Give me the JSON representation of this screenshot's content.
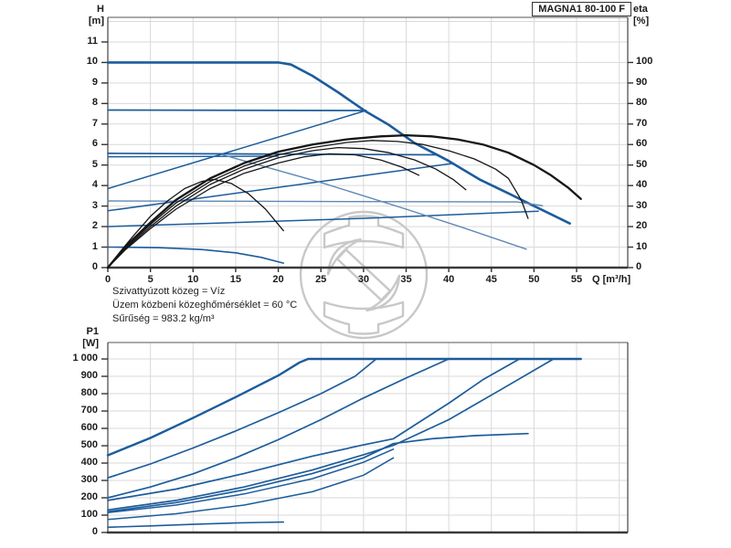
{
  "header": {
    "model_label": "MAGNA1 80-100 F"
  },
  "notes": [
    "Szivattyúzott közeg = Víz",
    "Üzem közbeni közeghőmérséklet = 60 °C",
    "Sűrűség = 983.2 kg/m³"
  ],
  "colors": {
    "curve_blue": "#1c5c9c",
    "curve_blue_light": "#5e88b4",
    "curve_black": "#161616",
    "grid": "#d9d9d9",
    "axis": "#3a3a3a",
    "border": "#555555",
    "watermark": "#c8c8c8",
    "text": "#1a1a1a"
  },
  "chart_data": [
    {
      "id": "head-efficiency-chart",
      "type": "line",
      "title": "MAGNA1 80-100 F",
      "xlabel": "Q [m³/h]",
      "ylabel_left_lines": [
        "H",
        "[m]"
      ],
      "ylabel_right_lines": [
        "eta",
        "[%]"
      ],
      "xlim": [
        0,
        61
      ],
      "ylim": [
        0,
        12.2
      ],
      "y2lim": [
        0,
        122
      ],
      "grid": true,
      "x_tick_values": [
        0,
        5,
        10,
        15,
        20,
        25,
        30,
        35,
        40,
        45,
        50,
        55
      ],
      "x_grid_values": [
        0,
        5,
        10,
        15,
        20,
        25,
        30,
        35,
        40,
        45,
        50,
        55,
        60
      ],
      "y_tick_values": [
        0,
        1,
        2,
        3,
        4,
        5,
        6,
        7,
        8,
        9,
        10,
        11
      ],
      "y_grid_values": [
        1,
        2,
        3,
        4,
        5,
        6,
        7,
        8,
        9,
        10,
        11,
        12
      ],
      "y2_tick_values": [
        0,
        10,
        20,
        30,
        40,
        50,
        60,
        70,
        80,
        90,
        100
      ],
      "series": [
        {
          "name": "max-speed-head-curve",
          "axis": "left",
          "color": "blue",
          "width": 2.6,
          "points": [
            [
              0,
              10
            ],
            [
              20,
              10
            ],
            [
              21.5,
              9.9
            ],
            [
              24,
              9.35
            ],
            [
              27,
              8.55
            ],
            [
              30.2,
              7.63
            ],
            [
              33,
              6.95
            ],
            [
              36,
              6.07
            ],
            [
              40,
              5.2
            ],
            [
              43.6,
              4.3
            ],
            [
              47,
              3.62
            ],
            [
              50,
              3.0
            ],
            [
              52,
              2.6
            ],
            [
              54.2,
              2.15
            ]
          ]
        },
        {
          "name": "const-pressure-7.7",
          "axis": "left",
          "color": "blue",
          "width": 1.7,
          "points": [
            [
              0,
              7.68
            ],
            [
              30.3,
              7.66
            ]
          ]
        },
        {
          "name": "prop-pressure-7.7",
          "axis": "left",
          "color": "blue",
          "width": 1.5,
          "points": [
            [
              0,
              3.85
            ],
            [
              30.3,
              7.66
            ]
          ]
        },
        {
          "name": "const-pressure-5.55",
          "axis": "left",
          "color": "blue",
          "width": 1.7,
          "points": [
            [
              0,
              5.57
            ],
            [
              38.6,
              5.5
            ]
          ]
        },
        {
          "name": "const-pressure-5.4",
          "axis": "left",
          "color": "blue",
          "width": 1.4,
          "points": [
            [
              0,
              5.4
            ],
            [
              20,
              5.43
            ]
          ]
        },
        {
          "name": "prop-pressure-5.5",
          "axis": "left",
          "color": "blue",
          "width": 1.5,
          "points": [
            [
              0,
              2.77
            ],
            [
              40.3,
              5.07
            ]
          ]
        },
        {
          "name": "const-pressure-3.25",
          "axis": "left",
          "color": "light",
          "width": 1.4,
          "points": [
            [
              0,
              3.25
            ],
            [
              48,
              3.2
            ],
            [
              51,
              3.02
            ]
          ]
        },
        {
          "name": "prop-pressure-2.0",
          "axis": "left",
          "color": "blue",
          "width": 1.5,
          "points": [
            [
              0,
              2.0
            ],
            [
              30,
              2.4
            ],
            [
              50.5,
              2.75
            ]
          ]
        },
        {
          "name": "min-speed-head-curve",
          "axis": "left",
          "color": "blue",
          "width": 1.6,
          "points": [
            [
              0,
              1.0
            ],
            [
              6,
              0.97
            ],
            [
              11,
              0.88
            ],
            [
              15,
              0.72
            ],
            [
              18,
              0.5
            ],
            [
              20.6,
              0.22
            ]
          ]
        },
        {
          "name": "speed2-head-curve",
          "axis": "left",
          "color": "light",
          "width": 1.4,
          "points": [
            [
              13.5,
              5.5
            ],
            [
              25,
              4.15
            ],
            [
              35,
              2.85
            ],
            [
              42,
              1.9
            ],
            [
              49.1,
              0.9
            ]
          ]
        },
        {
          "name": "eta-max-speed",
          "axis": "right",
          "color": "black",
          "width": 2.3,
          "points": [
            [
              0,
              0
            ],
            [
              2,
              10
            ],
            [
              5,
              22
            ],
            [
              8,
              33
            ],
            [
              12,
              43.5
            ],
            [
              16,
              51
            ],
            [
              20,
              56.5
            ],
            [
              24,
              60
            ],
            [
              28,
              62.5
            ],
            [
              32,
              64
            ],
            [
              35,
              64.5
            ],
            [
              38,
              64
            ],
            [
              41,
              62.5
            ],
            [
              44,
              60
            ],
            [
              47,
              56
            ],
            [
              50,
              50
            ],
            [
              52,
              45
            ],
            [
              54,
              39
            ],
            [
              55.5,
              33.5
            ]
          ]
        },
        {
          "name": "eta-speed-2",
          "axis": "right",
          "color": "black",
          "width": 1.3,
          "points": [
            [
              0,
              0
            ],
            [
              2,
              9.5
            ],
            [
              5,
              21
            ],
            [
              8,
              31.5
            ],
            [
              12,
              42
            ],
            [
              16,
              49.5
            ],
            [
              20,
              55
            ],
            [
              24,
              58.5
            ],
            [
              28,
              61
            ],
            [
              31,
              62
            ],
            [
              34,
              61.5
            ],
            [
              37,
              60
            ],
            [
              40,
              57
            ],
            [
              43,
              53
            ],
            [
              45.5,
              48
            ],
            [
              47,
              43.5
            ],
            [
              48.5,
              33
            ],
            [
              49.3,
              24
            ]
          ]
        },
        {
          "name": "eta-speed-3",
          "axis": "right",
          "color": "black",
          "width": 1.3,
          "points": [
            [
              0,
              0
            ],
            [
              2,
              9
            ],
            [
              5,
              20
            ],
            [
              8,
              30
            ],
            [
              12,
              40.5
            ],
            [
              16,
              48
            ],
            [
              20,
              53.5
            ],
            [
              24,
              57
            ],
            [
              27,
              58.5
            ],
            [
              30,
              58
            ],
            [
              33,
              56
            ],
            [
              36,
              52.5
            ],
            [
              38.5,
              48
            ],
            [
              40.5,
              43
            ],
            [
              42,
              38
            ]
          ]
        },
        {
          "name": "eta-speed-4",
          "axis": "right",
          "color": "black",
          "width": 1.3,
          "points": [
            [
              0,
              0
            ],
            [
              2,
              8.5
            ],
            [
              5,
              19
            ],
            [
              8,
              28.5
            ],
            [
              12,
              38.5
            ],
            [
              16,
              46
            ],
            [
              20,
              51
            ],
            [
              23,
              54
            ],
            [
              26,
              55.5
            ],
            [
              29,
              55
            ],
            [
              32,
              52.5
            ],
            [
              34.5,
              49
            ],
            [
              36.5,
              45
            ]
          ]
        },
        {
          "name": "eta-min-speed",
          "axis": "right",
          "color": "black",
          "width": 1.3,
          "points": [
            [
              0,
              0
            ],
            [
              1.5,
              8
            ],
            [
              3,
              15.5
            ],
            [
              5,
              25
            ],
            [
              7,
              32.5
            ],
            [
              9,
              38.5
            ],
            [
              11,
              42
            ],
            [
              12.5,
              43
            ],
            [
              14.5,
              41
            ],
            [
              16.5,
              36
            ],
            [
              18.5,
              28.5
            ],
            [
              20.6,
              18
            ]
          ]
        }
      ]
    },
    {
      "id": "power-chart",
      "type": "line",
      "ylabel_left_lines": [
        "P1",
        "[W]"
      ],
      "xlim": [
        0,
        61
      ],
      "ylim": [
        0,
        1095
      ],
      "grid": true,
      "x_tick_values": [],
      "x_grid_values": [
        0,
        5,
        10,
        15,
        20,
        25,
        30,
        35,
        40,
        45,
        50,
        55,
        60
      ],
      "y_tick_values": [
        0,
        100,
        200,
        300,
        400,
        500,
        600,
        700,
        800,
        900,
        1000
      ],
      "y_grid_values": [
        100,
        200,
        300,
        400,
        500,
        600,
        700,
        800,
        900,
        1000
      ],
      "series": [
        {
          "name": "p1-max-speed",
          "axis": "left",
          "color": "blue",
          "width": 2.4,
          "points": [
            [
              0,
              445
            ],
            [
              5,
              545
            ],
            [
              10,
              660
            ],
            [
              15,
              780
            ],
            [
              20,
              905
            ],
            [
              22.5,
              980
            ],
            [
              23.5,
              1000
            ],
            [
              55.5,
              1000
            ]
          ]
        },
        {
          "name": "p1-curve-2",
          "axis": "left",
          "color": "blue",
          "width": 1.7,
          "points": [
            [
              0,
              315
            ],
            [
              5,
              395
            ],
            [
              10,
              487
            ],
            [
              15,
              585
            ],
            [
              20,
              690
            ],
            [
              25,
              800
            ],
            [
              29,
              900
            ],
            [
              31.5,
              1000
            ]
          ]
        },
        {
          "name": "p1-curve-3",
          "axis": "left",
          "color": "blue",
          "width": 1.7,
          "points": [
            [
              0,
              200
            ],
            [
              5,
              262
            ],
            [
              10,
              338
            ],
            [
              15,
              430
            ],
            [
              20,
              535
            ],
            [
              25,
              650
            ],
            [
              30,
              775
            ],
            [
              35,
              890
            ],
            [
              40,
              1000
            ]
          ]
        },
        {
          "name": "p1-curve-4",
          "axis": "left",
          "color": "blue",
          "width": 1.7,
          "points": [
            [
              0,
              185
            ],
            [
              8,
              250
            ],
            [
              16,
              340
            ],
            [
              24,
              440
            ],
            [
              30,
              505
            ],
            [
              33.5,
              540
            ],
            [
              40,
              745
            ],
            [
              44,
              880
            ],
            [
              48.3,
              1000
            ]
          ]
        },
        {
          "name": "p1-curve-5",
          "axis": "left",
          "color": "blue",
          "width": 1.7,
          "points": [
            [
              0,
              130
            ],
            [
              8,
              185
            ],
            [
              16,
              262
            ],
            [
              24,
              360
            ],
            [
              30,
              448
            ],
            [
              33.5,
              502
            ],
            [
              40,
              650
            ],
            [
              46,
              820
            ],
            [
              52.3,
              1000
            ]
          ]
        },
        {
          "name": "p1-const-curve",
          "axis": "left",
          "color": "blue",
          "width": 1.7,
          "points": [
            [
              0,
              120
            ],
            [
              8,
              172
            ],
            [
              16,
              246
            ],
            [
              24,
              340
            ],
            [
              30,
              430
            ],
            [
              33.5,
              512
            ],
            [
              38,
              540
            ],
            [
              43,
              558
            ],
            [
              49.3,
              570
            ]
          ]
        },
        {
          "name": "p1-curve-7",
          "axis": "left",
          "color": "blue",
          "width": 1.5,
          "points": [
            [
              0,
              115
            ],
            [
              8,
              158
            ],
            [
              16,
              222
            ],
            [
              24,
              310
            ],
            [
              30,
              405
            ],
            [
              33.5,
              480
            ]
          ]
        },
        {
          "name": "p1-curve-8",
          "axis": "left",
          "color": "blue",
          "width": 1.5,
          "points": [
            [
              0,
              75
            ],
            [
              8,
              108
            ],
            [
              16,
              158
            ],
            [
              24,
              235
            ],
            [
              30,
              330
            ],
            [
              33.5,
              430
            ]
          ]
        },
        {
          "name": "p1-min-speed",
          "axis": "left",
          "color": "blue",
          "width": 1.6,
          "points": [
            [
              0,
              30
            ],
            [
              5,
              38
            ],
            [
              10,
              47
            ],
            [
              15,
              55
            ],
            [
              18,
              58
            ],
            [
              20.6,
              60
            ]
          ]
        }
      ]
    }
  ]
}
